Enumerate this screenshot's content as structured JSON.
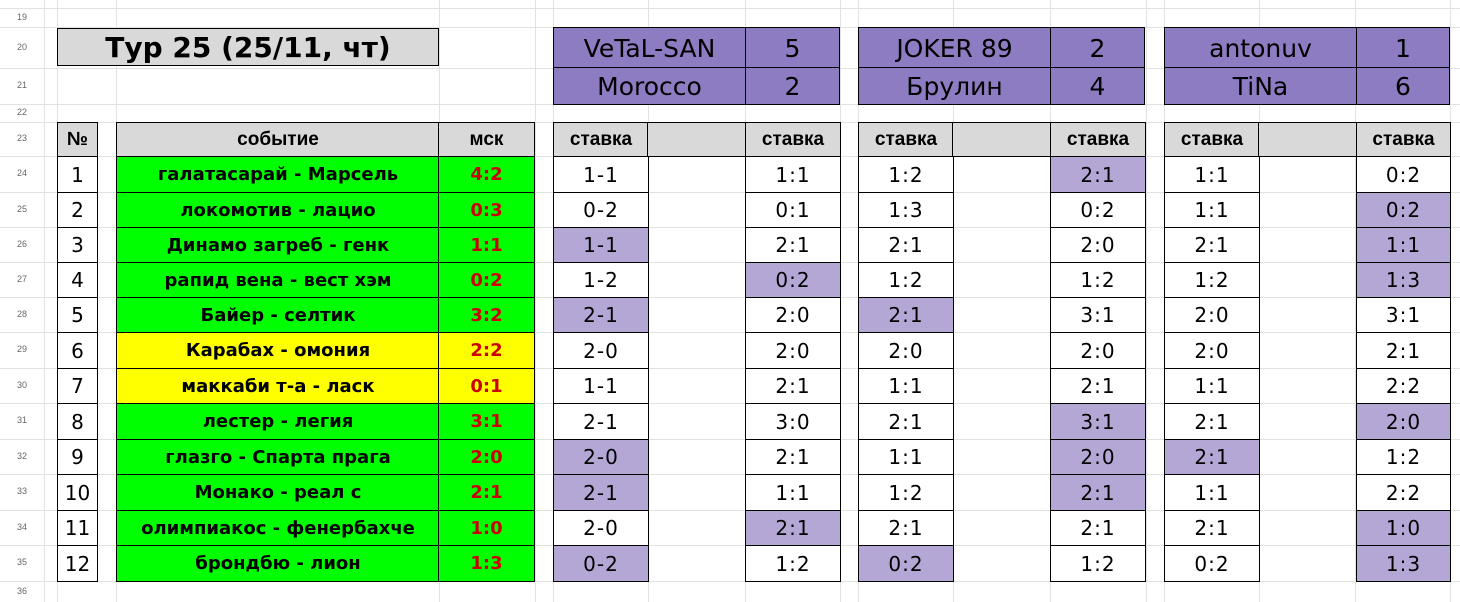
{
  "sheet": {
    "row_numbers": [
      "19",
      "20",
      "21",
      "22",
      "23",
      "24",
      "25",
      "26",
      "27",
      "28",
      "29",
      "30",
      "31",
      "32",
      "33",
      "34",
      "35",
      "36"
    ],
    "round_title": "Тур 25 (25/11, чт)",
    "headers": {
      "num": "№",
      "event": "событие",
      "msk": "мск",
      "bet": "ставка"
    },
    "colors": {
      "purple": "#8e7cc3",
      "light_purple": "#b4a7d6",
      "green": "#00ff00",
      "yellow": "#ffff00",
      "gray": "#d9d9d9",
      "score_red": "#cc0000"
    },
    "events": [
      {
        "num": "1",
        "name": "галатасарай - Марсель",
        "msk": "4:2",
        "status": "green"
      },
      {
        "num": "2",
        "name": "локомотив - лацио",
        "msk": "0:3",
        "status": "green"
      },
      {
        "num": "3",
        "name": "Динамо загреб - генк",
        "msk": "1:1",
        "status": "green"
      },
      {
        "num": "4",
        "name": "рапид вена - вест хэм",
        "msk": "0:2",
        "status": "green"
      },
      {
        "num": "5",
        "name": "Байер - селтик",
        "msk": "3:2",
        "status": "green"
      },
      {
        "num": "6",
        "name": "Карабах - омония",
        "msk": "2:2",
        "status": "yellow"
      },
      {
        "num": "7",
        "name": "маккаби т-а - ласк",
        "msk": "0:1",
        "status": "yellow"
      },
      {
        "num": "8",
        "name": "лестер - легия",
        "msk": "3:1",
        "status": "green"
      },
      {
        "num": "9",
        "name": "глазго - Спарта прага",
        "msk": "2:0",
        "status": "green"
      },
      {
        "num": "10",
        "name": "Монако - реал с",
        "msk": "2:1",
        "status": "green"
      },
      {
        "num": "11",
        "name": "олимпиакос - фенербахче",
        "msk": "1:0",
        "status": "green"
      },
      {
        "num": "12",
        "name": "брондбю - лион",
        "msk": "1:3",
        "status": "green"
      }
    ],
    "matches": [
      {
        "p1": {
          "name": "VeTaL-SAN",
          "score": "5"
        },
        "p2": {
          "name": "Morocco",
          "score": "2"
        },
        "bets_left": [
          "1-1",
          "0-2",
          "1-1",
          "1-2",
          "2-1",
          "2-0",
          "1-1",
          "2-1",
          "2-0",
          "2-1",
          "2-0",
          "0-2"
        ],
        "bets_right": [
          "1:1",
          "0:1",
          "2:1",
          "0:2",
          "2:0",
          "2:0",
          "2:1",
          "3:0",
          "2:1",
          "1:1",
          "2:1",
          "1:2"
        ],
        "hl_left": [
          false,
          false,
          true,
          false,
          true,
          false,
          false,
          false,
          true,
          true,
          false,
          true
        ],
        "hl_right": [
          false,
          false,
          false,
          true,
          false,
          false,
          false,
          false,
          false,
          false,
          true,
          false
        ]
      },
      {
        "p1": {
          "name": "JOKER 89",
          "score": "2"
        },
        "p2": {
          "name": "Брулин",
          "score": "4"
        },
        "bets_left": [
          "1:2",
          "1:3",
          "2:1",
          "1:2",
          "2:1",
          "2:0",
          "1:1",
          "2:1",
          "1:1",
          "1:2",
          "2:1",
          "0:2"
        ],
        "bets_right": [
          "2:1",
          "0:2",
          "2:0",
          "1:2",
          "3:1",
          "2:0",
          "2:1",
          "3:1",
          "2:0",
          "2:1",
          "2:1",
          "1:2"
        ],
        "hl_left": [
          false,
          false,
          false,
          false,
          true,
          false,
          false,
          false,
          false,
          false,
          false,
          true
        ],
        "hl_right": [
          true,
          false,
          false,
          false,
          false,
          false,
          false,
          true,
          true,
          true,
          false,
          false
        ]
      },
      {
        "p1": {
          "name": "antonuv",
          "score": "1"
        },
        "p2": {
          "name": "TiNa",
          "score": "6"
        },
        "bets_left": [
          "1:1",
          "1:1",
          "2:1",
          "1:2",
          "2:0",
          "2:0",
          "1:1",
          "2:1",
          "2:1",
          "1:1",
          "2:1",
          "0:2"
        ],
        "bets_right": [
          "0:2",
          "0:2",
          "1:1",
          "1:3",
          "3:1",
          "2:1",
          "2:2",
          "2:0",
          "1:2",
          "2:2",
          "1:0",
          "1:3"
        ],
        "hl_left": [
          false,
          false,
          false,
          false,
          false,
          false,
          false,
          false,
          true,
          false,
          false,
          false
        ],
        "hl_right": [
          false,
          true,
          true,
          true,
          false,
          false,
          false,
          true,
          false,
          false,
          true,
          true
        ]
      }
    ]
  }
}
